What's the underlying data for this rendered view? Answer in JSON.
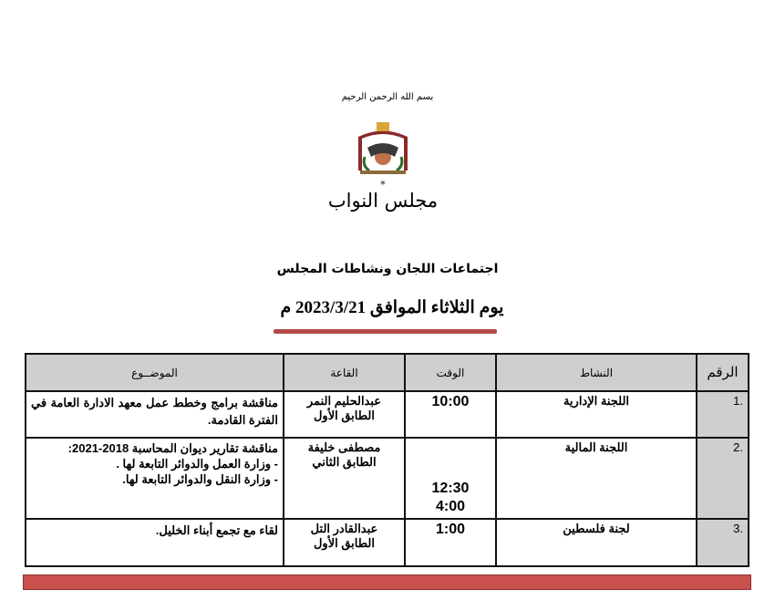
{
  "header": {
    "basmala": "بسم الله الرحمن الرحيم",
    "logo": "jordan-coat-of-arms",
    "council_name": "مجلس النواب",
    "title": "اجتماعات اللجان ونشاطات المجلس",
    "date_line": "يوم الثلاثاء الموافق 2023/3/21 م"
  },
  "table": {
    "columns": [
      "الرقم",
      "النشاط",
      "الوقت",
      "القاعة",
      "الموضــوع"
    ],
    "rows": [
      {
        "num": ".1",
        "activity": "اللجنة الإدارية",
        "time": [
          "10:00"
        ],
        "hall": [
          "عبدالحليم النمر",
          "الطابق الأول"
        ],
        "topic": [
          "مناقشة برامج وخطط عمل معهد الادارة العامة في الفترة القادمة."
        ]
      },
      {
        "num": ".2",
        "activity": "اللجنة المالية",
        "time": [
          "12:30",
          "4:00"
        ],
        "hall": [
          "مصطفى خليفة",
          "الطابق الثاني"
        ],
        "topic": [
          "مناقشة تقارير ديوان المحاسبة 2018-2021:",
          "- وزارة العمل والدوائر التابعة لها .",
          "- وزارة النقل والدوائر التابعة لها."
        ]
      },
      {
        "num": ".3",
        "activity": "لجنة فلسطين",
        "time": [
          "1:00"
        ],
        "hall": [
          "عبدالقادر التل",
          "الطابق الأول"
        ],
        "topic": [
          "لقاء مع تجمع أبناء الخليل."
        ]
      }
    ]
  },
  "colors": {
    "accent_red": "#c9504d",
    "header_gray": "#cfcfcf"
  }
}
